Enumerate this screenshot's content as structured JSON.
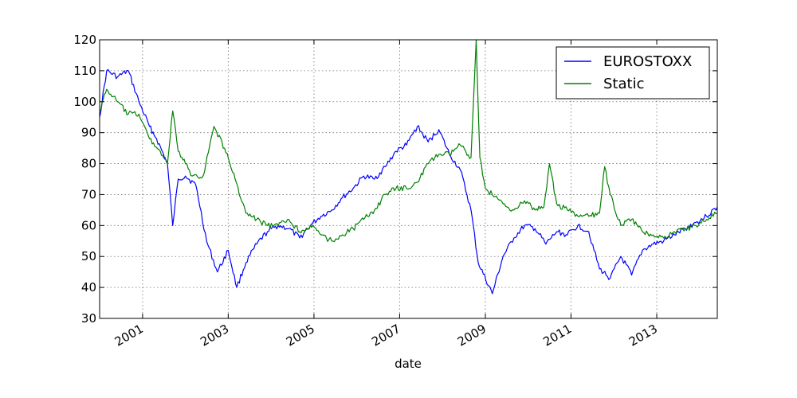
{
  "chart_data": {
    "type": "line",
    "title": "",
    "xlabel": "date",
    "ylabel": "",
    "xlim": [
      "2000-01-01",
      "2014-06-01"
    ],
    "ylim": [
      30,
      120
    ],
    "x_ticks": [
      "2001-01-01",
      "2003-01-01",
      "2005-01-01",
      "2007-01-01",
      "2009-01-01",
      "2011-01-01",
      "2013-01-01"
    ],
    "x_tick_labels": [
      "2001",
      "2003",
      "2005",
      "2007",
      "2009",
      "2011",
      "2013"
    ],
    "y_ticks": [
      30,
      40,
      50,
      60,
      70,
      80,
      90,
      100,
      110,
      120
    ],
    "grid": true,
    "legend_position": "top-right",
    "series": [
      {
        "name": "EUROSTOXX",
        "color": "#0000ff",
        "x": [
          "2000-01-01",
          "2000-03-01",
          "2000-06-01",
          "2000-09-01",
          "2000-12-01",
          "2001-03-01",
          "2001-05-01",
          "2001-08-01",
          "2001-09-15",
          "2001-11-01",
          "2002-01-01",
          "2002-04-01",
          "2002-07-01",
          "2002-10-01",
          "2003-01-01",
          "2003-03-15",
          "2003-06-01",
          "2003-09-01",
          "2003-12-01",
          "2004-03-01",
          "2004-06-01",
          "2004-09-01",
          "2004-12-01",
          "2005-03-01",
          "2005-06-01",
          "2005-09-01",
          "2005-12-01",
          "2006-03-01",
          "2006-06-01",
          "2006-09-01",
          "2006-12-01",
          "2007-03-01",
          "2007-06-01",
          "2007-09-01",
          "2007-12-01",
          "2008-03-01",
          "2008-06-01",
          "2008-09-01",
          "2008-11-01",
          "2009-03-01",
          "2009-06-01",
          "2009-09-01",
          "2009-12-01",
          "2010-03-01",
          "2010-06-01",
          "2010-09-01",
          "2010-12-01",
          "2011-03-01",
          "2011-06-01",
          "2011-09-01",
          "2011-12-01",
          "2012-03-01",
          "2012-06-01",
          "2012-09-01",
          "2012-12-01",
          "2013-03-01",
          "2013-06-01",
          "2013-09-01",
          "2013-12-01",
          "2014-03-01",
          "2014-06-01"
        ],
        "y": [
          95,
          110,
          108,
          110,
          100,
          92,
          88,
          80,
          60,
          75,
          76,
          73,
          55,
          45,
          52,
          40,
          48,
          54,
          58,
          60,
          59,
          56,
          60,
          63,
          65,
          69,
          72,
          76,
          75,
          79,
          84,
          86,
          92,
          87,
          91,
          83,
          78,
          65,
          48,
          38,
          50,
          56,
          60,
          59,
          54,
          58,
          57,
          60,
          58,
          46,
          43,
          50,
          44,
          52,
          54,
          55,
          57,
          59,
          61,
          63,
          66
        ]
      },
      {
        "name": "Static",
        "color": "#008000",
        "x": [
          "2000-01-01",
          "2000-03-01",
          "2000-06-01",
          "2000-09-01",
          "2000-12-01",
          "2001-03-01",
          "2001-06-01",
          "2001-08-01",
          "2001-09-15",
          "2001-11-01",
          "2002-01-01",
          "2002-03-01",
          "2002-06-01",
          "2002-09-01",
          "2002-12-01",
          "2003-03-01",
          "2003-06-01",
          "2003-09-01",
          "2003-12-01",
          "2004-03-01",
          "2004-06-01",
          "2004-09-01",
          "2004-12-01",
          "2005-03-01",
          "2005-06-01",
          "2005-09-01",
          "2005-12-01",
          "2006-03-01",
          "2006-06-01",
          "2006-09-01",
          "2006-12-01",
          "2007-03-01",
          "2007-06-01",
          "2007-09-01",
          "2007-12-01",
          "2008-03-01",
          "2008-06-01",
          "2008-09-01",
          "2008-10-15",
          "2008-11-15",
          "2009-01-01",
          "2009-03-01",
          "2009-06-01",
          "2009-09-01",
          "2009-12-01",
          "2010-03-01",
          "2010-05-15",
          "2010-07-01",
          "2010-09-01",
          "2010-12-01",
          "2011-03-01",
          "2011-06-01",
          "2011-09-01",
          "2011-10-15",
          "2011-12-01",
          "2012-03-01",
          "2012-06-01",
          "2012-09-01",
          "2012-12-01",
          "2013-03-01",
          "2013-06-01",
          "2013-09-01",
          "2013-12-01",
          "2014-03-01",
          "2014-06-01"
        ],
        "y": [
          97,
          104,
          100,
          96,
          96,
          88,
          84,
          80,
          97,
          84,
          80,
          76,
          76,
          92,
          85,
          75,
          64,
          62,
          60,
          60,
          62,
          58,
          60,
          57,
          55,
          57,
          59,
          62,
          65,
          70,
          72,
          72,
          74,
          80,
          83,
          83,
          86,
          82,
          120,
          82,
          72,
          70,
          67,
          65,
          68,
          65,
          66,
          80,
          67,
          65,
          63,
          63,
          64,
          79,
          70,
          60,
          62,
          58,
          57,
          56,
          58,
          59,
          60,
          62,
          64
        ]
      }
    ]
  }
}
